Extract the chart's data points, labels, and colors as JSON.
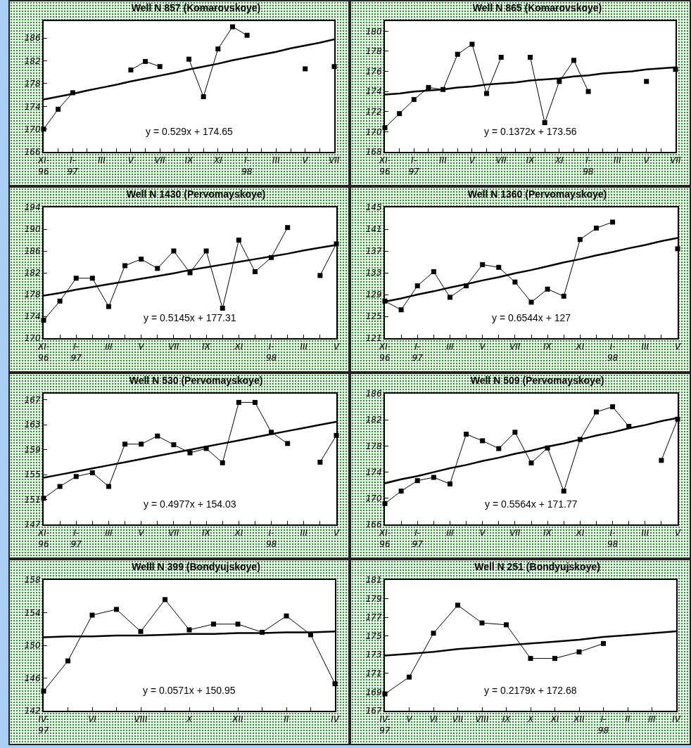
{
  "chart_data": [
    {
      "type": "line",
      "title": "Well N 857 (Komarovskoye)",
      "ylim": [
        166,
        189
      ],
      "yticks": [
        166,
        170,
        174,
        178,
        182,
        186
      ],
      "categories": [
        "XI-\n96",
        null,
        "I-\n97",
        null,
        "III",
        null,
        "V",
        null,
        "VII",
        null,
        "IX",
        null,
        "XI",
        null,
        "I-\n98",
        null,
        "III",
        null,
        "V",
        null,
        "VII"
      ],
      "series": [
        {
          "color": "#000000",
          "marker": "square",
          "values": [
            170,
            173.5,
            176.4,
            null,
            null,
            null,
            180.4,
            181.9,
            181,
            null,
            182.3,
            175.7,
            184.1,
            188,
            186.5,
            null,
            null,
            null,
            180.6,
            null,
            181
          ]
        },
        {
          "color": "#000000",
          "marker": "none",
          "values": [
            175.2,
            175.7,
            176.2,
            176.8,
            177.3,
            177.8,
            178.4,
            178.9,
            179.4,
            179.9,
            180.5,
            181,
            181.5,
            182.1,
            182.6,
            183.1,
            183.6,
            184.2,
            184.7,
            185.2,
            185.8
          ]
        }
      ],
      "annotations": [
        "y = 0.529x + 174.65"
      ]
    },
    {
      "type": "line",
      "title": "Well N 865 (Komarovskoye)",
      "ylim": [
        168,
        181
      ],
      "yticks": [
        168,
        170,
        172,
        174,
        176,
        178,
        180
      ],
      "categories": [
        "XI-\n96",
        null,
        "I-\n97",
        null,
        "III",
        null,
        "V",
        null,
        "VII",
        null,
        "IX",
        null,
        "XI",
        null,
        "I-\n98",
        null,
        "III",
        null,
        "V",
        null,
        "VII"
      ],
      "series": [
        {
          "color": "#000000",
          "marker": "square",
          "values": [
            170.4,
            171.8,
            173.2,
            174.4,
            174.2,
            177.7,
            178.7,
            173.8,
            177.4,
            null,
            177.4,
            170.9,
            175,
            177.1,
            174,
            null,
            null,
            null,
            175,
            null,
            176.2
          ]
        },
        {
          "color": "#000000",
          "marker": "none",
          "values": [
            173.7,
            173.8,
            174,
            174.1,
            174.2,
            174.4,
            174.5,
            174.7,
            174.8,
            174.9,
            175.1,
            175.2,
            175.3,
            175.5,
            175.6,
            175.8,
            175.9,
            176,
            176.2,
            176.3,
            176.4
          ]
        }
      ],
      "annotations": [
        "y = 0.1372x + 173.56"
      ]
    },
    {
      "type": "line",
      "title": "Well N 1430 (Pervomayskoye)",
      "ylim": [
        170,
        194
      ],
      "yticks": [
        170,
        174,
        178,
        182,
        186,
        190,
        194
      ],
      "categories": [
        "XI-\n96",
        null,
        "I-\n97",
        null,
        "III",
        null,
        "V",
        null,
        "VII",
        null,
        "IX",
        null,
        "XI",
        null,
        "I-\n98",
        null,
        "III",
        null,
        "V"
      ],
      "series": [
        {
          "color": "#000000",
          "marker": "square",
          "values": [
            173.3,
            176.8,
            181,
            181,
            175.8,
            183.3,
            184.5,
            182.8,
            186,
            182,
            186,
            175.5,
            188,
            182.2,
            184.8,
            190.3,
            null,
            181.5,
            187.3
          ]
        },
        {
          "color": "#000000",
          "marker": "none",
          "values": [
            177.8,
            178.3,
            178.9,
            179.4,
            179.9,
            180.4,
            180.9,
            181.4,
            181.9,
            182.5,
            183,
            183.5,
            184,
            184.5,
            185,
            185.5,
            186.1,
            186.6,
            187.1
          ]
        }
      ],
      "annotations": [
        "y = 0.5145x + 177.31"
      ]
    },
    {
      "type": "line",
      "title": "Well N 1360 (Pervomayskoye)",
      "ylim": [
        121,
        145
      ],
      "yticks": [
        121,
        125,
        129,
        133,
        137,
        141,
        145
      ],
      "categories": [
        "XI-\n96",
        null,
        "I-\n97",
        null,
        "III",
        null,
        "V",
        null,
        "VII",
        null,
        "IX",
        null,
        "XI",
        null,
        "I-\n98",
        null,
        "III",
        null,
        "V"
      ],
      "series": [
        {
          "color": "#000000",
          "marker": "square",
          "values": [
            127.8,
            126.2,
            130.6,
            133.2,
            128.5,
            130.6,
            134.5,
            134,
            131.3,
            127.6,
            130,
            128.7,
            139.1,
            141.2,
            142.3,
            null,
            null,
            null,
            137.4
          ]
        },
        {
          "color": "#000000",
          "marker": "none",
          "values": [
            127.7,
            128.3,
            129,
            129.6,
            130.3,
            130.9,
            131.6,
            132.2,
            132.9,
            133.5,
            134.2,
            134.9,
            135.5,
            136.2,
            136.8,
            137.5,
            138.1,
            138.8,
            139.4
          ]
        }
      ],
      "annotations": [
        "y = 0.6544x + 127"
      ]
    },
    {
      "type": "line",
      "title": "Well N 530 (Pervomayskoye)",
      "ylim": [
        147,
        168
      ],
      "yticks": [
        147,
        151,
        155,
        159,
        163,
        167
      ],
      "categories": [
        "XI-\n96",
        null,
        "I-\n97",
        null,
        "III",
        null,
        "V",
        null,
        "VII",
        null,
        "IX",
        null,
        "XI",
        null,
        "I-\n98",
        null,
        "III",
        null,
        "V"
      ],
      "series": [
        {
          "color": "#000000",
          "marker": "square",
          "values": [
            151.2,
            153.1,
            154.7,
            155.3,
            153.1,
            159.9,
            159.9,
            161.2,
            159.8,
            158.5,
            159.2,
            156.9,
            166.6,
            166.6,
            161.8,
            160,
            null,
            157,
            161.3
          ]
        },
        {
          "color": "#000000",
          "marker": "none",
          "values": [
            154.5,
            155,
            155.5,
            156,
            156.5,
            157,
            157.5,
            158,
            158.5,
            159,
            159.5,
            160,
            160.5,
            161,
            161.5,
            162,
            162.5,
            163,
            163.5
          ]
        }
      ],
      "annotations": [
        "y = 0.4977x + 154.03"
      ]
    },
    {
      "type": "line",
      "title": "Well N 509 (Pervomayskoye)",
      "ylim": [
        166,
        186
      ],
      "yticks": [
        166,
        170,
        174,
        178,
        182,
        186
      ],
      "categories": [
        "XI-\n96",
        null,
        "I-\n97",
        null,
        "III",
        null,
        "V",
        null,
        "VII",
        null,
        "IX",
        null,
        "XI",
        null,
        "I-\n98",
        null,
        "III",
        null,
        "V"
      ],
      "series": [
        {
          "color": "#000000",
          "marker": "square",
          "values": [
            169.2,
            171.1,
            172.7,
            173.2,
            172.2,
            179.8,
            178.8,
            177.6,
            180.1,
            175.4,
            177.7,
            171.1,
            179,
            183.2,
            184,
            181,
            null,
            175.8,
            182.1
          ]
        },
        {
          "color": "#000000",
          "marker": "none",
          "values": [
            172.3,
            172.9,
            173.4,
            174,
            174.6,
            175.1,
            175.7,
            176.2,
            176.8,
            177.3,
            177.9,
            178.4,
            179,
            179.6,
            180.1,
            180.7,
            181.2,
            181.8,
            182.3
          ]
        }
      ],
      "annotations": [
        "y = 0.5564x + 171.77"
      ]
    },
    {
      "type": "line",
      "title": "Welll N 399 (Bondyujskoye)",
      "ylim": [
        142,
        158
      ],
      "yticks": [
        142,
        146,
        150,
        154,
        158
      ],
      "categories": [
        "IV-\n97",
        null,
        "VI",
        null,
        "VIII",
        null,
        "X",
        null,
        "XII",
        null,
        "II",
        null,
        "IV"
      ],
      "series": [
        {
          "color": "#000000",
          "marker": "square",
          "values": [
            144.4,
            148.1,
            153.7,
            154.4,
            151.7,
            155.6,
            151.9,
            152.6,
            152.6,
            151.6,
            153.6,
            151.3,
            145.3
          ]
        },
        {
          "color": "#000000",
          "marker": "none",
          "values": [
            151,
            151.1,
            151.1,
            151.2,
            151.2,
            151.3,
            151.4,
            151.4,
            151.5,
            151.5,
            151.6,
            151.6,
            151.7
          ]
        }
      ],
      "annotations": [
        "y = 0.0571x + 150.95"
      ]
    },
    {
      "type": "line",
      "title": "Well N 251 (Bondyujskoye)",
      "ylim": [
        167,
        181
      ],
      "yticks": [
        167,
        169,
        171,
        173,
        175,
        177,
        179,
        181
      ],
      "categories": [
        "IV-\n97",
        "V",
        "VI",
        "VII",
        "VIII",
        "IX",
        "X",
        "XI",
        "XII",
        "I-\n98",
        "II",
        "III",
        "IV"
      ],
      "series": [
        {
          "color": "#000000",
          "marker": "square",
          "values": [
            168.8,
            170.6,
            175.3,
            178.3,
            176.4,
            176.2,
            172.6,
            172.6,
            173.3,
            174.2,
            null,
            null,
            null
          ]
        },
        {
          "color": "#000000",
          "marker": "none",
          "values": [
            172.9,
            173.1,
            173.3,
            173.6,
            173.8,
            174,
            174.2,
            174.4,
            174.6,
            174.9,
            175.1,
            175.3,
            175.5
          ]
        }
      ],
      "annotations": [
        "y = 0.2179x + 172.68"
      ]
    }
  ]
}
